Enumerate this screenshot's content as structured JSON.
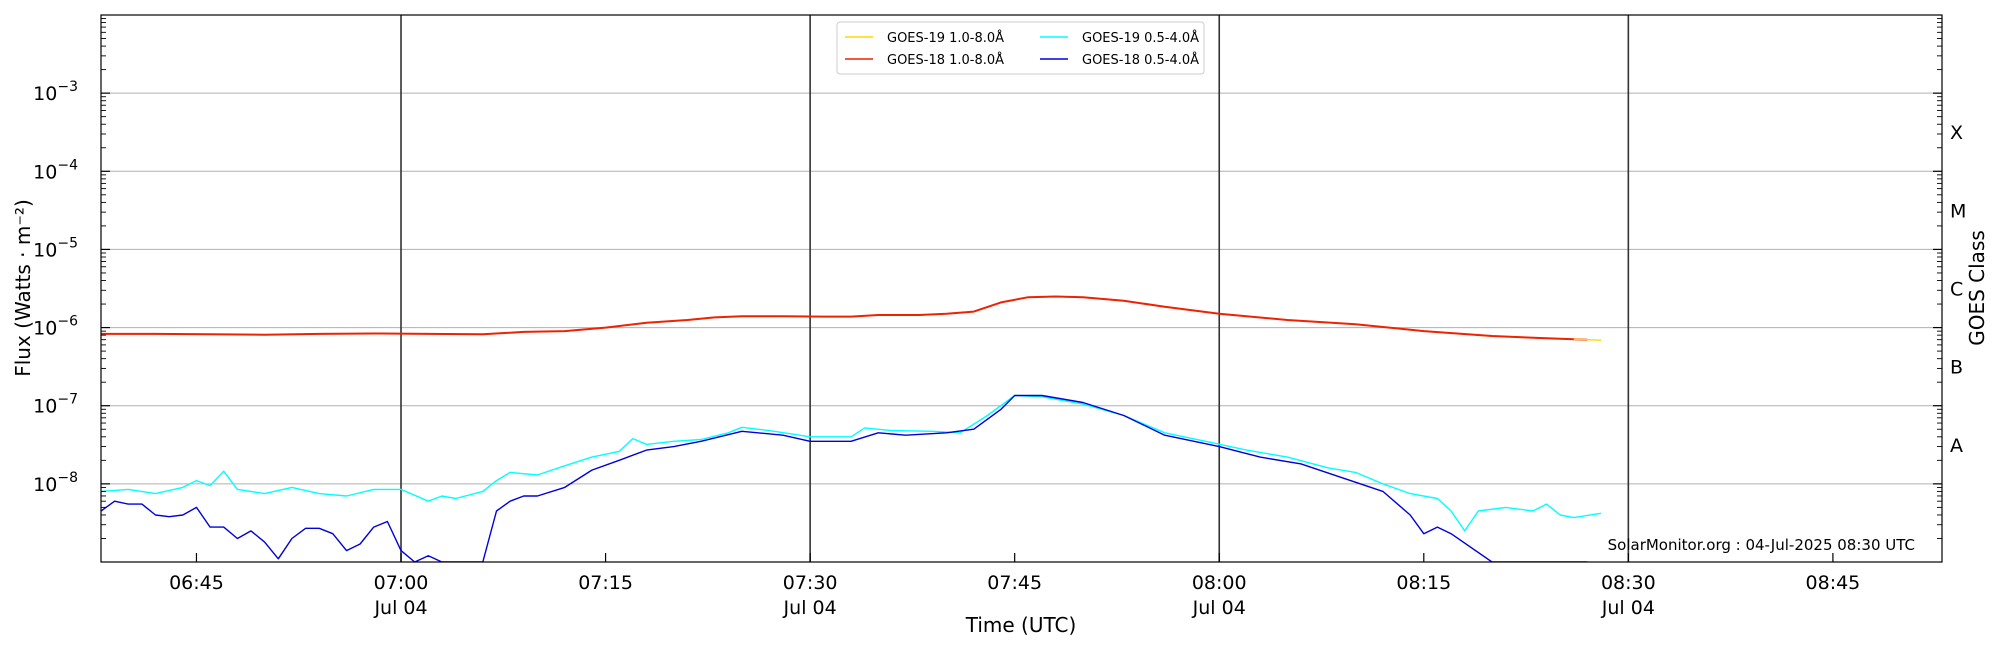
{
  "chart_data": {
    "type": "line",
    "title": "",
    "xlabel": "Time (UTC)",
    "ylabel": "Flux (Watts · m⁻²)",
    "y2label": "GOES Class",
    "yscale": "log",
    "ylim": [
      1e-09,
      0.01
    ],
    "xlim": [
      "06:38",
      "08:53"
    ],
    "x_ticks": [
      {
        "time": "06:45",
        "label": "06:45",
        "sublabel": ""
      },
      {
        "time": "07:00",
        "label": "07:00",
        "sublabel": "Jul 04"
      },
      {
        "time": "07:15",
        "label": "07:15",
        "sublabel": ""
      },
      {
        "time": "07:30",
        "label": "07:30",
        "sublabel": "Jul 04"
      },
      {
        "time": "07:45",
        "label": "07:45",
        "sublabel": ""
      },
      {
        "time": "08:00",
        "label": "08:00",
        "sublabel": "Jul 04"
      },
      {
        "time": "08:15",
        "label": "08:15",
        "sublabel": ""
      },
      {
        "time": "08:30",
        "label": "08:30",
        "sublabel": "Jul 04"
      },
      {
        "time": "08:45",
        "label": "08:45",
        "sublabel": ""
      }
    ],
    "y_ticks": [
      {
        "value": 1e-08,
        "label": "10",
        "exp": "−8"
      },
      {
        "value": 1e-07,
        "label": "10",
        "exp": "−7"
      },
      {
        "value": 1e-06,
        "label": "10",
        "exp": "−6"
      },
      {
        "value": 1e-05,
        "label": "10",
        "exp": "−5"
      },
      {
        "value": 0.0001,
        "label": "10",
        "exp": "−4"
      },
      {
        "value": 0.001,
        "label": "10",
        "exp": "−3"
      }
    ],
    "class_labels": [
      {
        "label": "A",
        "value": 3.16e-08
      },
      {
        "label": "B",
        "value": 3.16e-07
      },
      {
        "label": "C",
        "value": 3.16e-06
      },
      {
        "label": "M",
        "value": 3.16e-05
      },
      {
        "label": "X",
        "value": 0.000316
      }
    ],
    "vlines": [
      "07:00",
      "07:30",
      "08:00",
      "08:30"
    ],
    "grid": "horizontal",
    "legend_position": "top-center",
    "annotation": "SolarMonitor.org : 04-Jul-2025 08:30 UTC",
    "series": [
      {
        "name": "GOES-19 1.0-8.0Å",
        "color": "#ffd700",
        "x": [
          "08:26",
          "08:28"
        ],
        "y": [
          7.1e-07,
          6.9e-07
        ]
      },
      {
        "name": "GOES-18 1.0-8.0Å",
        "color": "#ee2200",
        "x": [
          "06:38",
          "06:42",
          "06:46",
          "06:50",
          "06:54",
          "06:58",
          "07:02",
          "07:06",
          "07:09",
          "07:12",
          "07:15",
          "07:18",
          "07:21",
          "07:23",
          "07:25",
          "07:28",
          "07:31",
          "07:33",
          "07:35",
          "07:38",
          "07:40",
          "07:42",
          "07:44",
          "07:46",
          "07:48",
          "07:50",
          "07:53",
          "07:56",
          "08:00",
          "08:05",
          "08:10",
          "08:15",
          "08:20",
          "08:24",
          "08:27"
        ],
        "y": [
          8.3e-07,
          8.3e-07,
          8.2e-07,
          8.1e-07,
          8.3e-07,
          8.4e-07,
          8.3e-07,
          8.2e-07,
          8.8e-07,
          9e-07,
          1e-06,
          1.15e-06,
          1.25e-06,
          1.35e-06,
          1.4e-06,
          1.4e-06,
          1.38e-06,
          1.38e-06,
          1.45e-06,
          1.45e-06,
          1.5e-06,
          1.6e-06,
          2.1e-06,
          2.45e-06,
          2.5e-06,
          2.45e-06,
          2.2e-06,
          1.85e-06,
          1.5e-06,
          1.25e-06,
          1.1e-06,
          9e-07,
          7.8e-07,
          7.3e-07,
          7e-07
        ]
      },
      {
        "name": "GOES-19 0.5-4.0Å",
        "color": "#00ffff",
        "x": [
          "06:38",
          "06:40",
          "06:42",
          "06:44",
          "06:45",
          "06:46",
          "06:47",
          "06:48",
          "06:50",
          "06:52",
          "06:54",
          "06:56",
          "06:58",
          "07:00",
          "07:02",
          "07:03",
          "07:04",
          "07:06",
          "07:07",
          "07:08",
          "07:10",
          "07:12",
          "07:14",
          "07:16",
          "07:17",
          "07:18",
          "07:20",
          "07:22",
          "07:24",
          "07:25",
          "07:27",
          "07:30",
          "07:33",
          "07:34",
          "07:36",
          "07:39",
          "07:41",
          "07:43",
          "07:45",
          "07:47",
          "07:50",
          "07:53",
          "07:56",
          "07:59",
          "08:02",
          "08:05",
          "08:08",
          "08:10",
          "08:12",
          "08:14",
          "08:16",
          "08:17",
          "08:18",
          "08:19",
          "08:21",
          "08:23",
          "08:24",
          "08:25",
          "08:26",
          "08:28"
        ],
        "y": [
          8e-09,
          8.5e-09,
          7.5e-09,
          9e-09,
          1.1e-08,
          9.5e-09,
          1.45e-08,
          8.5e-09,
          7.5e-09,
          9e-09,
          7.5e-09,
          7e-09,
          8.5e-09,
          8.5e-09,
          6e-09,
          7e-09,
          6.5e-09,
          8e-09,
          1.1e-08,
          1.4e-08,
          1.3e-08,
          1.7e-08,
          2.2e-08,
          2.6e-08,
          3.8e-08,
          3.2e-08,
          3.5e-08,
          3.7e-08,
          4.5e-08,
          5.3e-08,
          4.8e-08,
          4e-08,
          4e-08,
          5.2e-08,
          4.8e-08,
          4.7e-08,
          4.5e-08,
          7.5e-08,
          1.35e-07,
          1.3e-07,
          1.05e-07,
          7.5e-08,
          4.5e-08,
          3.5e-08,
          2.7e-08,
          2.2e-08,
          1.6e-08,
          1.4e-08,
          1e-08,
          7.5e-09,
          6.5e-09,
          4.5e-09,
          2.5e-09,
          4.5e-09,
          5e-09,
          4.5e-09,
          5.5e-09,
          4e-09,
          3.7e-09,
          4.2e-09
        ]
      },
      {
        "name": "GOES-18 0.5-4.0Å",
        "color": "#0000dd",
        "x": [
          "06:38",
          "06:39",
          "06:40",
          "06:41",
          "06:42",
          "06:43",
          "06:44",
          "06:45",
          "06:46",
          "06:47",
          "06:48",
          "06:49",
          "06:50",
          "06:51",
          "06:52",
          "06:53",
          "06:54",
          "06:55",
          "06:56",
          "06:57",
          "06:58",
          "06:59",
          "07:00",
          "07:01",
          "07:02",
          "07:03",
          "07:04",
          "07:05",
          "07:06",
          "07:07",
          "07:08",
          "07:09",
          "07:10",
          "07:12",
          "07:14",
          "07:16",
          "07:18",
          "07:20",
          "07:22",
          "07:25",
          "07:28",
          "07:30",
          "07:33",
          "07:35",
          "07:37",
          "07:40",
          "07:42",
          "07:44",
          "07:45",
          "07:47",
          "07:50",
          "07:53",
          "07:56",
          "08:00",
          "08:03",
          "08:06",
          "08:09",
          "08:12",
          "08:14",
          "08:15",
          "08:16",
          "08:17",
          "08:20",
          "08:24",
          "08:27"
        ],
        "y": [
          4.5e-09,
          6e-09,
          5.5e-09,
          5.5e-09,
          4e-09,
          3.8e-09,
          4e-09,
          5e-09,
          2.8e-09,
          2.8e-09,
          2e-09,
          2.5e-09,
          1.8e-09,
          1.1e-09,
          2e-09,
          2.7e-09,
          2.7e-09,
          2.3e-09,
          1.4e-09,
          1.7e-09,
          2.8e-09,
          3.3e-09,
          1.4e-09,
          1e-09,
          1.2e-09,
          1e-09,
          1e-09,
          1e-09,
          1e-09,
          4.5e-09,
          6e-09,
          7e-09,
          7e-09,
          9e-09,
          1.5e-08,
          2e-08,
          2.7e-08,
          3e-08,
          3.5e-08,
          4.7e-08,
          4.2e-08,
          3.5e-08,
          3.5e-08,
          4.5e-08,
          4.2e-08,
          4.5e-08,
          5e-08,
          9e-08,
          1.35e-07,
          1.35e-07,
          1.1e-07,
          7.5e-08,
          4.2e-08,
          3e-08,
          2.2e-08,
          1.8e-08,
          1.2e-08,
          8e-09,
          4e-09,
          2.3e-09,
          2.8e-09,
          2.3e-09,
          1e-09,
          1e-09,
          1e-09
        ]
      }
    ]
  }
}
